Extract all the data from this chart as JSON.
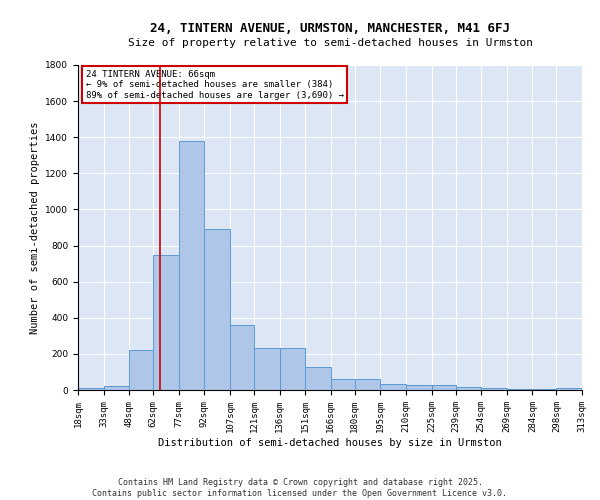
{
  "title": "24, TINTERN AVENUE, URMSTON, MANCHESTER, M41 6FJ",
  "subtitle": "Size of property relative to semi-detached houses in Urmston",
  "xlabel": "Distribution of semi-detached houses by size in Urmston",
  "ylabel": "Number of semi-detached properties",
  "footer_line1": "Contains HM Land Registry data © Crown copyright and database right 2025.",
  "footer_line2": "Contains public sector information licensed under the Open Government Licence v3.0.",
  "annotation_title": "24 TINTERN AVENUE: 66sqm",
  "annotation_line1": "← 9% of semi-detached houses are smaller (384)",
  "annotation_line2": "89% of semi-detached houses are larger (3,690) →",
  "bin_edges": [
    18,
    33,
    48,
    62,
    77,
    92,
    107,
    121,
    136,
    151,
    166,
    180,
    195,
    210,
    225,
    239,
    254,
    269,
    284,
    298,
    313
  ],
  "bin_counts": [
    10,
    20,
    220,
    750,
    1380,
    890,
    360,
    230,
    230,
    125,
    60,
    60,
    35,
    30,
    30,
    15,
    10,
    5,
    5,
    10
  ],
  "bar_color": "#aec6e8",
  "bar_edge_color": "#5b9bd5",
  "vline_color": "#cc0000",
  "vline_x": 66,
  "ylim": [
    0,
    1800
  ],
  "yticks": [
    0,
    200,
    400,
    600,
    800,
    1000,
    1200,
    1400,
    1600,
    1800
  ],
  "bg_color": "#dce6f5",
  "annotation_box_color": "#cc0000",
  "title_fontsize": 9,
  "subtitle_fontsize": 8,
  "axis_label_fontsize": 7.5,
  "tick_fontsize": 6.5,
  "footer_fontsize": 6,
  "annotation_fontsize": 6.5
}
